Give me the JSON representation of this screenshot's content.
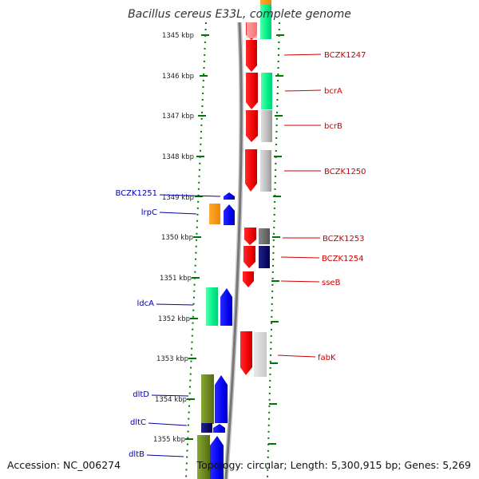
{
  "title": "Bacillus cereus E33L, complete genome",
  "footer": {
    "accession": "Accession: NC_006274",
    "topology": "Topology: circular; Length: 5,300,915 bp; Genes: 5,269"
  },
  "colors": {
    "forward_label": "#cc0000",
    "reverse_label": "#0000aa",
    "tick": "#007700",
    "backbone": "#777777"
  },
  "scale_labels": [
    "1345 kbp",
    "1346 kbp",
    "1347 kbp",
    "1348 kbp",
    "1349 kbp",
    "1350 kbp",
    "1351 kbp",
    "1352 kbp",
    "1353 kbp",
    "1354 kbp",
    "1355 kbp"
  ],
  "forward_genes": [
    "BCZK1247",
    "bcrA",
    "bcrB",
    "BCZK1250",
    "BCZK1253",
    "BCZK1254",
    "sseB",
    "fabK"
  ],
  "reverse_genes": [
    "BCZK1251",
    "lrpC",
    "ldcA",
    "dltD",
    "dltC",
    "dltB"
  ]
}
